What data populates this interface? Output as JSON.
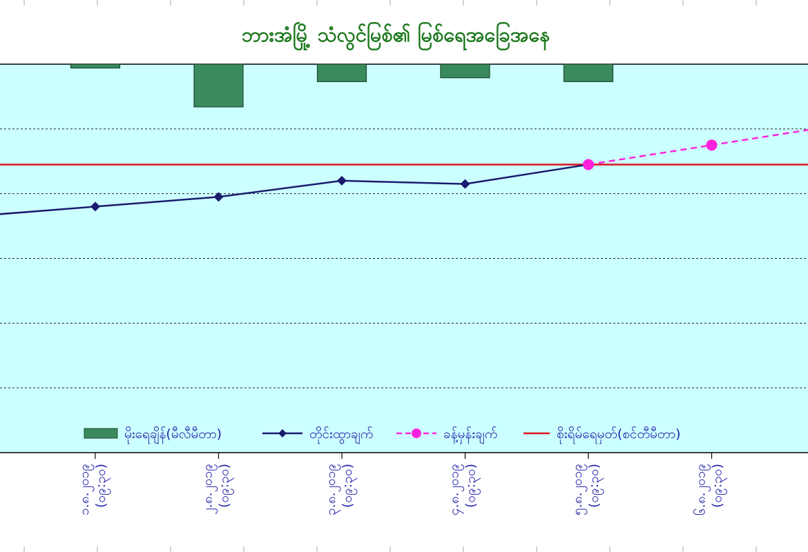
{
  "chart_data": {
    "type": "bar+line",
    "title": "ဘားအံမြို့ သံလွင်မြစ်၏ မြစ်ရေအခြေအနေ",
    "colors": {
      "plot_bg": "#ccffff",
      "rain_bar": "#3a8a5e",
      "observed": "#1a1a6e",
      "forecast": "#ff22dd",
      "danger_line": "#e0101a",
      "title": "#1f7a1f",
      "axis_text": "#2222aa",
      "grid": "#222222"
    },
    "categories": [
      "၁.၈.၂၀၁၉ (၀၉:၃၀)",
      "၂.၈.၂၀၁၉ (၀၉:၃၀)",
      "၃.၈.၂၀၁၉ (၀၉:၃၀)",
      "၄.၈.၂၀၁၉ (၀၉:၃၀)",
      "၅.၈.၂၀၁၉ (၀၉:၃၀)",
      "၆.၈.၂၀၁၉ (၀၉:၃၀)"
    ],
    "left_axis": {
      "min": 0,
      "max": 6,
      "grid_step": 1
    },
    "series": [
      {
        "name": "မိုးရေချိန်(မီလီမီတာ)",
        "kind": "bar",
        "axis": "rain_inverted",
        "values": [
          0.1,
          1.1,
          0.45,
          0.35,
          0.45,
          null
        ]
      },
      {
        "name": "တိုင်းထွာချက်",
        "kind": "line",
        "marker": "diamond",
        "x": [
          -1,
          0,
          1,
          2,
          3,
          4
        ],
        "values": [
          3.65,
          3.8,
          3.95,
          4.2,
          4.15,
          4.45
        ]
      },
      {
        "name": "ခန့်မှန်းချက်",
        "kind": "line-dashed",
        "marker": "circle",
        "x": [
          4,
          5,
          6
        ],
        "values": [
          4.45,
          4.75,
          5.05
        ]
      },
      {
        "name": "စိုးရိမ်ရေမှတ်(စင်တီမီတာ)",
        "kind": "hline",
        "value": 4.45
      }
    ],
    "rain_axis": {
      "min": 0,
      "max": 10,
      "inverted": true
    },
    "grid": true,
    "legend_position": "bottom"
  }
}
